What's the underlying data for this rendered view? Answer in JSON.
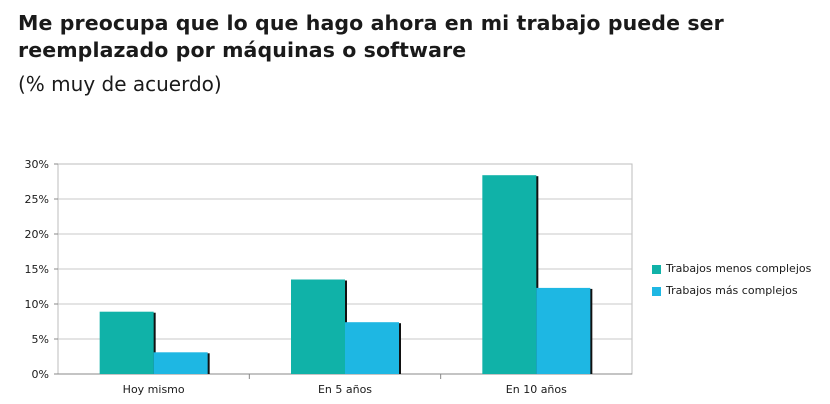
{
  "title": "Me preocupa que lo que hago ahora en mi trabajo puede ser reemplazado por máquinas o software",
  "subtitle": "(% muy de acuerdo)",
  "chart_data": {
    "type": "bar",
    "title": "Me preocupa que lo que hago ahora en mi trabajo puede ser reemplazado por máquinas o software",
    "subtitle": "(% muy de acuerdo)",
    "categories": [
      "Hoy mismo",
      "En 5 años",
      "En 10 años"
    ],
    "series": [
      {
        "name": "Trabajos menos complejos",
        "values": [
          8.9,
          13.5,
          28.4
        ],
        "color": "#10b2a8"
      },
      {
        "name": "Trabajos más complejos",
        "values": [
          3.1,
          7.4,
          12.3
        ],
        "color": "#1eb7e3"
      }
    ],
    "y_ticks": [
      "0%",
      "5%",
      "10%",
      "15%",
      "20%",
      "25%",
      "30%"
    ],
    "ylim": [
      0,
      30
    ],
    "grid": true,
    "legend_position": "right"
  }
}
